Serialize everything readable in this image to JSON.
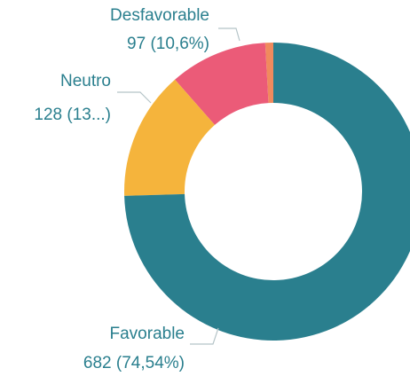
{
  "chart_data": {
    "type": "donut",
    "categories": [
      "Favorable",
      "Neutro",
      "Desfavorable",
      null
    ],
    "values": [
      682,
      128,
      97,
      8
    ],
    "value_labels": [
      "682 (74,54%)",
      "128 (13...)",
      "97 (10,6%)",
      null
    ],
    "colors": [
      "#2a7f8e",
      "#f5b43c",
      "#eb5b78",
      "#f08a5d"
    ]
  }
}
